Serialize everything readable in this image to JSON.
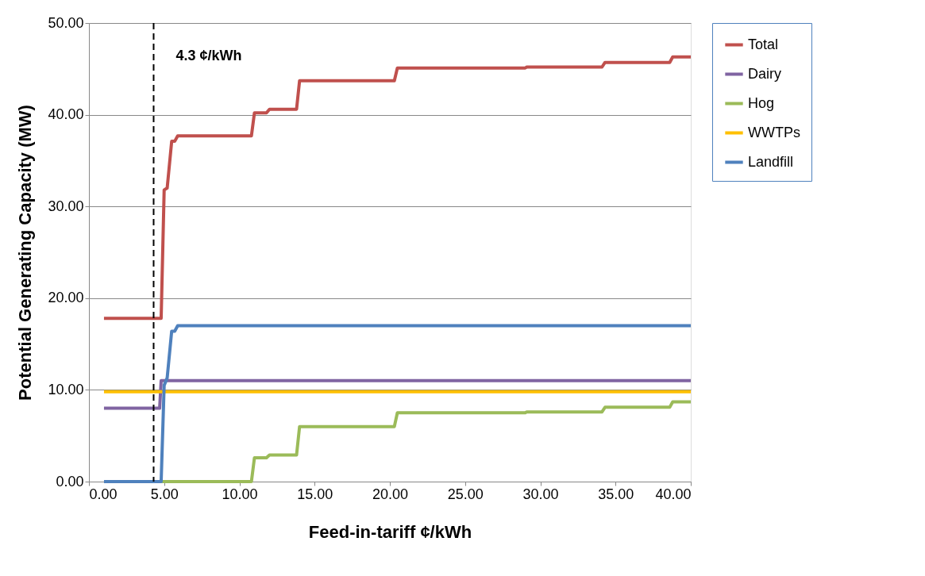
{
  "chart_data": {
    "type": "line",
    "xlabel": "Feed-in-tariff ¢/kWh",
    "ylabel": "Potential Generating Capacity (MW)",
    "xlim": [
      0,
      40
    ],
    "ylim": [
      0,
      50
    ],
    "xticks": [
      {
        "value": 0,
        "label": "0.00"
      },
      {
        "value": 5,
        "label": "5.00"
      },
      {
        "value": 10,
        "label": "10.00"
      },
      {
        "value": 15,
        "label": "15.00"
      },
      {
        "value": 20,
        "label": "20.00"
      },
      {
        "value": 25,
        "label": "25.00"
      },
      {
        "value": 30,
        "label": "30.00"
      },
      {
        "value": 35,
        "label": "35.00"
      },
      {
        "value": 40,
        "label": "40.00"
      }
    ],
    "yticks": [
      {
        "value": 0,
        "label": "0.00"
      },
      {
        "value": 10,
        "label": "10.00"
      },
      {
        "value": 20,
        "label": "20.00"
      },
      {
        "value": 30,
        "label": "30.00"
      },
      {
        "value": 40,
        "label": "40.00"
      },
      {
        "value": 50,
        "label": "50.00"
      }
    ],
    "grid": "y",
    "legend": "right",
    "line_style": "solid",
    "ref_lines": [
      {
        "axis": "x",
        "value": 4.3,
        "label": "4.3 ¢/kWh",
        "color": "#000000",
        "line_style": "dashed"
      }
    ],
    "series": [
      {
        "name": "Total",
        "color": "#c0504d",
        "x": [
          1,
          4.8,
          5.0,
          5.2,
          5.5,
          5.7,
          5.9,
          10.8,
          11.0,
          11.8,
          12.0,
          13.8,
          14.0,
          20.3,
          20.5,
          29.0,
          29.1,
          34.1,
          34.3,
          38.6,
          38.8,
          40
        ],
        "values": [
          17.8,
          17.8,
          31.8,
          32.0,
          37.1,
          37.1,
          37.7,
          37.7,
          40.2,
          40.2,
          40.6,
          40.6,
          43.7,
          43.7,
          45.1,
          45.1,
          45.2,
          45.2,
          45.7,
          45.7,
          46.3,
          46.3
        ]
      },
      {
        "name": "Dairy",
        "color": "#8064a2",
        "x": [
          1,
          4.7,
          4.8,
          40
        ],
        "values": [
          8.0,
          8.0,
          11.0,
          11.0
        ]
      },
      {
        "name": "Hog",
        "color": "#9bbb59",
        "x": [
          4.8,
          10.8,
          11.0,
          11.8,
          12.0,
          13.8,
          14.0,
          20.3,
          20.5,
          29.0,
          29.1,
          34.1,
          34.3,
          38.6,
          38.8,
          40
        ],
        "values": [
          0,
          0,
          2.6,
          2.6,
          2.9,
          2.9,
          6.0,
          6.0,
          7.5,
          7.5,
          7.6,
          7.6,
          8.1,
          8.1,
          8.7,
          8.7
        ]
      },
      {
        "name": "WWTPs",
        "color": "#ffc000",
        "x": [
          1,
          40
        ],
        "values": [
          9.8,
          9.8
        ]
      },
      {
        "name": "Landfill",
        "color": "#4f81bd",
        "x": [
          1,
          4.8,
          5.0,
          5.2,
          5.5,
          5.7,
          5.9,
          40
        ],
        "values": [
          0,
          0,
          10.5,
          11.3,
          16.4,
          16.4,
          17.0,
          17.0
        ]
      }
    ]
  }
}
